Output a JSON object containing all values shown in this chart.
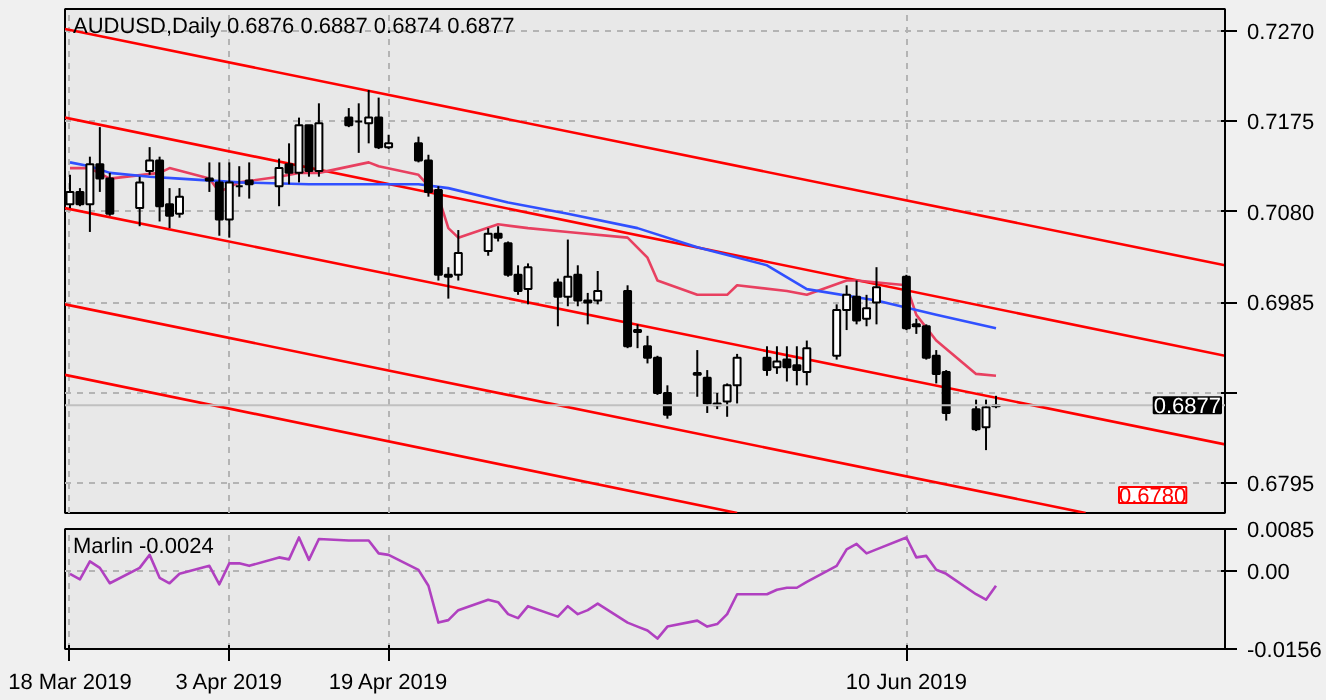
{
  "chart_data": [
    {
      "type": "candlestick",
      "title": "AUDUSD,Daily  0.6876 0.6887 0.6874 0.6877",
      "x": [
        "2019-03-18",
        "2019-03-19",
        "2019-03-20",
        "2019-03-21",
        "2019-03-22",
        "2019-03-25",
        "2019-03-26",
        "2019-03-27",
        "2019-03-28",
        "2019-03-29",
        "2019-04-01",
        "2019-04-02",
        "2019-04-03",
        "2019-04-04",
        "2019-04-05",
        "2019-04-08",
        "2019-04-09",
        "2019-04-10",
        "2019-04-11",
        "2019-04-12",
        "2019-04-15",
        "2019-04-16",
        "2019-04-17",
        "2019-04-18",
        "2019-04-19",
        "2019-04-22",
        "2019-04-23",
        "2019-04-24",
        "2019-04-25",
        "2019-04-26",
        "2019-04-29",
        "2019-04-30",
        "2019-05-01",
        "2019-05-02",
        "2019-05-03",
        "2019-05-06",
        "2019-05-07",
        "2019-05-08",
        "2019-05-09",
        "2019-05-10",
        "2019-05-13",
        "2019-05-14",
        "2019-05-15",
        "2019-05-16",
        "2019-05-17",
        "2019-05-20",
        "2019-05-21",
        "2019-05-22",
        "2019-05-23",
        "2019-05-24",
        "2019-05-27",
        "2019-05-28",
        "2019-05-29",
        "2019-05-30",
        "2019-05-31",
        "2019-06-03",
        "2019-06-04",
        "2019-06-05",
        "2019-06-06",
        "2019-06-07",
        "2019-06-10",
        "2019-06-11",
        "2019-06-12",
        "2019-06-13",
        "2019-06-14",
        "2019-06-17",
        "2019-06-18",
        "2019-06-19"
      ],
      "ohlc": [
        [
          0.7088,
          0.7119,
          0.7084,
          0.7101
        ],
        [
          0.7101,
          0.7105,
          0.7086,
          0.7088
        ],
        [
          0.7088,
          0.7138,
          0.7059,
          0.713
        ],
        [
          0.713,
          0.7169,
          0.7101,
          0.7115
        ],
        [
          0.7115,
          0.7121,
          0.7076,
          0.7078
        ],
        [
          0.7084,
          0.7117,
          0.7065,
          0.7111
        ],
        [
          0.7123,
          0.7148,
          0.7119,
          0.7134
        ],
        [
          0.7134,
          0.7138,
          0.707,
          0.7086
        ],
        [
          0.7088,
          0.7105,
          0.7063,
          0.7076
        ],
        [
          0.7078,
          0.7105,
          0.7074,
          0.7096
        ],
        [
          0.7115,
          0.7132,
          0.7101,
          0.7113
        ],
        [
          0.7111,
          0.7132,
          0.7055,
          0.7072
        ],
        [
          0.7072,
          0.7132,
          0.7053,
          0.7111
        ],
        [
          0.7107,
          0.7128,
          0.7096,
          0.7107
        ],
        [
          0.7113,
          0.7132,
          0.7094,
          0.7109
        ],
        [
          0.7107,
          0.7136,
          0.7086,
          0.7126
        ],
        [
          0.713,
          0.7152,
          0.7109,
          0.7121
        ],
        [
          0.7121,
          0.7179,
          0.7111,
          0.7171
        ],
        [
          0.7171,
          0.7171,
          0.7117,
          0.7123
        ],
        [
          0.7123,
          0.7194,
          0.7117,
          0.7173
        ],
        [
          0.7179,
          0.7189,
          0.7169,
          0.7171
        ],
        [
          0.7175,
          0.7194,
          0.7142,
          0.7175
        ],
        [
          0.7173,
          0.7208,
          0.7152,
          0.7179
        ],
        [
          0.7179,
          0.72,
          0.7146,
          0.7148
        ],
        [
          0.7148,
          0.7161,
          0.7146,
          0.7152
        ],
        [
          0.7152,
          0.7159,
          0.7132,
          0.7134
        ],
        [
          0.7134,
          0.714,
          0.7096,
          0.7101
        ],
        [
          0.7103,
          0.7107,
          0.7008,
          0.7014
        ],
        [
          0.7014,
          0.7022,
          0.6989,
          0.7012
        ],
        [
          0.7014,
          0.7061,
          0.7008,
          0.7037
        ],
        [
          0.7039,
          0.7063,
          0.7034,
          0.7057
        ],
        [
          0.7057,
          0.7065,
          0.7049,
          0.7053
        ],
        [
          0.7047,
          0.7049,
          0.7012,
          0.7014
        ],
        [
          0.7014,
          0.7024,
          0.6993,
          0.6997
        ],
        [
          0.6999,
          0.7026,
          0.6983,
          0.7022
        ],
        [
          0.7006,
          0.701,
          0.696,
          0.6991
        ],
        [
          0.6991,
          0.7051,
          0.6981,
          0.7012
        ],
        [
          0.7014,
          0.7024,
          0.6981,
          0.6987
        ],
        [
          0.6987,
          0.6995,
          0.6962,
          0.6985
        ],
        [
          0.6987,
          0.7018,
          0.6983,
          0.6997
        ],
        [
          0.6997,
          0.7003,
          0.6937,
          0.6939
        ],
        [
          0.6956,
          0.6962,
          0.6937,
          0.6954
        ],
        [
          0.6939,
          0.695,
          0.6921,
          0.6927
        ],
        [
          0.6927,
          0.6929,
          0.6888,
          0.689
        ],
        [
          0.689,
          0.6898,
          0.6863,
          0.6867
        ],
        [
          0.6911,
          0.6935,
          0.6886,
          0.6909
        ],
        [
          0.6906,
          0.6914,
          0.6869,
          0.6879
        ],
        [
          0.6879,
          0.689,
          0.6873,
          0.6877
        ],
        [
          0.6881,
          0.69,
          0.6865,
          0.6898
        ],
        [
          0.6898,
          0.6931,
          0.6879,
          0.6927
        ],
        [
          0.6927,
          0.6939,
          0.6908,
          0.6914
        ],
        [
          0.6917,
          0.6939,
          0.691,
          0.6923
        ],
        [
          0.6925,
          0.6939,
          0.6902,
          0.6917
        ],
        [
          0.6919,
          0.6939,
          0.6898,
          0.6914
        ],
        [
          0.6912,
          0.6945,
          0.6898,
          0.6937
        ],
        [
          0.6929,
          0.6983,
          0.6925,
          0.6977
        ],
        [
          0.6977,
          0.7003,
          0.6956,
          0.6993
        ],
        [
          0.6991,
          0.7008,
          0.6962,
          0.6966
        ],
        [
          0.6968,
          0.6993,
          0.696,
          0.6979
        ],
        [
          0.6985,
          0.7022,
          0.6962,
          0.7001
        ],
        [
          0.7012,
          0.7014,
          0.6956,
          0.6958
        ],
        [
          0.6962,
          0.6968,
          0.6952,
          0.696
        ],
        [
          0.696,
          0.6962,
          0.6925,
          0.6927
        ],
        [
          0.6929,
          0.6935,
          0.69,
          0.691
        ],
        [
          0.6912,
          0.6914,
          0.6861,
          0.6869
        ],
        [
          0.6873,
          0.6883,
          0.685,
          0.6852
        ],
        [
          0.6854,
          0.6883,
          0.683,
          0.6875
        ],
        [
          0.6876,
          0.6887,
          0.6874,
          0.6877
        ]
      ],
      "colors": [
        "#ffffff",
        "#000000",
        "#ffffff",
        "#000000",
        "#000000",
        "#ffffff",
        "#ffffff",
        "#000000",
        "#000000",
        "#ffffff",
        "#000000",
        "#000000",
        "#ffffff",
        "#000000",
        "#000000",
        "#ffffff",
        "#000000",
        "#ffffff",
        "#000000",
        "#ffffff",
        "#000000",
        "#000000",
        "#ffffff",
        "#000000",
        "#ffffff",
        "#000000",
        "#000000",
        "#000000",
        "#000000",
        "#ffffff",
        "#ffffff",
        "#000000",
        "#000000",
        "#000000",
        "#ffffff",
        "#000000",
        "#ffffff",
        "#000000",
        "#000000",
        "#ffffff",
        "#000000",
        "#000000",
        "#000000",
        "#000000",
        "#000000",
        "#000000",
        "#000000",
        "#000000",
        "#ffffff",
        "#ffffff",
        "#000000",
        "#ffffff",
        "#000000",
        "#000000",
        "#ffffff",
        "#ffffff",
        "#ffffff",
        "#000000",
        "#ffffff",
        "#ffffff",
        "#000000",
        "#000000",
        "#000000",
        "#000000",
        "#000000",
        "#000000",
        "#ffffff",
        "#ffffff"
      ],
      "series": [
        {
          "type": "line",
          "color": "#ff0000",
          "x": [
            "2019-03-17T12:00",
            "2019-07-12"
          ],
          "values": [
            0.7272,
            0.7024
          ]
        },
        {
          "type": "line",
          "color": "#ff0000",
          "x": [
            "2019-03-17T12:00",
            "2019-07-12"
          ],
          "values": [
            0.7179,
            0.6929
          ]
        },
        {
          "type": "line",
          "color": "#ff0000",
          "x": [
            "2019-03-17T12:00",
            "2019-07-12"
          ],
          "values": [
            0.7084,
            0.6836
          ]
        },
        {
          "type": "line",
          "color": "#ff0000",
          "x": [
            "2019-03-17T12:00",
            "2019-06-28"
          ],
          "values": [
            0.6983,
            0.6764
          ]
        },
        {
          "type": "line",
          "color": "#ff0000",
          "x": [
            "2019-03-17T12:00",
            "2019-05-24"
          ],
          "values": [
            0.6909,
            0.6764
          ]
        },
        {
          "type": "line",
          "color": "#e84060",
          "x": [
            "2019-03-18",
            "2019-03-20",
            "2019-03-22",
            "2019-03-27",
            "2019-03-28",
            "2019-04-01",
            "2019-04-02",
            "2019-04-04",
            "2019-04-08",
            "2019-04-10",
            "2019-04-12",
            "2019-04-17",
            "2019-04-18",
            "2019-04-22",
            "2019-04-24",
            "2019-04-25",
            "2019-04-26",
            "2019-04-30",
            "2019-05-03",
            "2019-05-07",
            "2019-05-13",
            "2019-05-15",
            "2019-05-16",
            "2019-05-20",
            "2019-05-23",
            "2019-05-24",
            "2019-05-29",
            "2019-05-31",
            "2019-06-04",
            "2019-06-05",
            "2019-06-10",
            "2019-06-11",
            "2019-06-13",
            "2019-06-17",
            "2019-06-19"
          ],
          "values": [
            0.7126,
            0.7126,
            0.7115,
            0.7121,
            0.7126,
            0.7115,
            0.7101,
            0.7111,
            0.7117,
            0.7121,
            0.7121,
            0.7132,
            0.7128,
            0.7119,
            0.7096,
            0.7063,
            0.7053,
            0.7067,
            0.7063,
            0.7059,
            0.7053,
            0.7032,
            0.7008,
            0.6993,
            0.6993,
            0.7003,
            0.6997,
            0.6993,
            0.7008,
            0.7008,
            0.7003,
            0.6972,
            0.6945,
            0.691,
            0.6908
          ]
        },
        {
          "type": "line",
          "color": "#3050ff",
          "x": [
            "2019-03-18",
            "2019-03-20",
            "2019-03-22",
            "2019-03-26",
            "2019-03-29",
            "2019-04-04",
            "2019-04-11",
            "2019-04-22",
            "2019-04-25",
            "2019-05-01",
            "2019-05-07",
            "2019-05-14",
            "2019-05-20",
            "2019-05-27",
            "2019-05-31",
            "2019-06-07",
            "2019-06-13",
            "2019-06-19"
          ],
          "values": [
            0.7132,
            0.7128,
            0.7121,
            0.7117,
            0.7115,
            0.7111,
            0.7109,
            0.7109,
            0.7105,
            0.709,
            0.7078,
            0.7063,
            0.7043,
            0.7024,
            0.6999,
            0.6987,
            0.6972,
            0.6958
          ]
        }
      ],
      "xlim": [
        "2019-03-17T12:00",
        "2019-07-12"
      ],
      "ylim": [
        0.6764,
        0.7293
      ],
      "xticks": [
        {
          "value": "2019-03-18",
          "label": null
        },
        {
          "value": "2019-04-03",
          "label": null
        },
        {
          "value": "2019-04-19",
          "label": null
        },
        {
          "value": "2019-06-10",
          "label": null
        }
      ],
      "yticks": [
        {
          "value": 0.727,
          "label": "0.7270"
        },
        {
          "value": 0.7175,
          "label": "0.7175"
        },
        {
          "value": 0.708,
          "label": "0.7080"
        },
        {
          "value": 0.6985,
          "label": "0.6985"
        },
        {
          "value": 0.689,
          "label": null
        },
        {
          "value": 0.6795,
          "label": "0.6795"
        }
      ],
      "tick_labels": "y",
      "grid": true,
      "ref_lines": [
        {
          "axis": "y",
          "value": 0.6877,
          "label": "0.6877",
          "color": "#c0c0c0"
        }
      ],
      "annotations": [
        "0.6780"
      ]
    },
    {
      "type": "line",
      "title": "Marlin -0.0024",
      "series": [
        {
          "color": "#b040c0",
          "x": [
            "2019-03-18",
            "2019-03-19",
            "2019-03-20",
            "2019-03-21",
            "2019-03-22",
            "2019-03-25",
            "2019-03-26",
            "2019-03-27",
            "2019-03-28",
            "2019-03-29",
            "2019-04-01",
            "2019-04-02",
            "2019-04-03",
            "2019-04-04",
            "2019-04-05",
            "2019-04-08",
            "2019-04-09",
            "2019-04-10",
            "2019-04-11",
            "2019-04-12",
            "2019-04-15",
            "2019-04-17",
            "2019-04-18",
            "2019-04-19",
            "2019-04-22",
            "2019-04-23",
            "2019-04-24",
            "2019-04-25",
            "2019-04-26",
            "2019-04-29",
            "2019-04-30",
            "2019-05-01",
            "2019-05-02",
            "2019-05-03",
            "2019-05-06",
            "2019-05-07",
            "2019-05-08",
            "2019-05-09",
            "2019-05-10",
            "2019-05-13",
            "2019-05-14",
            "2019-05-15",
            "2019-05-16",
            "2019-05-17",
            "2019-05-20",
            "2019-05-21",
            "2019-05-22",
            "2019-05-23",
            "2019-05-24",
            "2019-05-27",
            "2019-05-28",
            "2019-05-29",
            "2019-05-30",
            "2019-05-31",
            "2019-06-03",
            "2019-06-04",
            "2019-06-05",
            "2019-06-06",
            "2019-06-07",
            "2019-06-10",
            "2019-06-11",
            "2019-06-12",
            "2019-06-13",
            "2019-06-14",
            "2019-06-17",
            "2019-06-18",
            "2019-06-19"
          ],
          "values": [
            -0.0005,
            -0.0016,
            0.002,
            0.0007,
            -0.0024,
            0.0007,
            0.0033,
            -0.0013,
            -0.0024,
            -0.0005,
            0.0011,
            -0.0026,
            0.0016,
            0.0016,
            0.0011,
            0.0028,
            0.0024,
            0.0068,
            0.0023,
            0.0065,
            0.0062,
            0.0062,
            0.0036,
            0.0033,
            0.0003,
            -0.0029,
            -0.0103,
            -0.0098,
            -0.0078,
            -0.0057,
            -0.0062,
            -0.0086,
            -0.0094,
            -0.007,
            -0.0091,
            -0.007,
            -0.0086,
            -0.0078,
            -0.0065,
            -0.0103,
            -0.0111,
            -0.0119,
            -0.0135,
            -0.0111,
            -0.0099,
            -0.0111,
            -0.0106,
            -0.0086,
            -0.0046,
            -0.0046,
            -0.0037,
            -0.0033,
            -0.0033,
            -0.0021,
            0.0011,
            0.0044,
            0.0055,
            0.0036,
            0.0044,
            0.0068,
            0.0028,
            0.0031,
            0.0003,
            -0.0005,
            -0.0046,
            -0.0057,
            -0.0029
          ]
        }
      ],
      "xlim": [
        "2019-03-17T12:00",
        "2019-07-12"
      ],
      "ylim": [
        -0.0156,
        0.0085
      ],
      "xticks": [
        {
          "value": "2019-03-18",
          "label": "18 Mar 2019"
        },
        {
          "value": "2019-04-03",
          "label": "3 Apr 2019"
        },
        {
          "value": "2019-04-19",
          "label": "19 Apr 2019"
        },
        {
          "value": "2019-06-10",
          "label": "10 Jun 2019"
        }
      ],
      "yticks": [
        {
          "value": 0.0085,
          "label": "0.0085"
        },
        {
          "value": 0,
          "label": "0.00"
        },
        {
          "value": -0.0156,
          "label": "-0.0156"
        }
      ],
      "grid": true
    }
  ]
}
